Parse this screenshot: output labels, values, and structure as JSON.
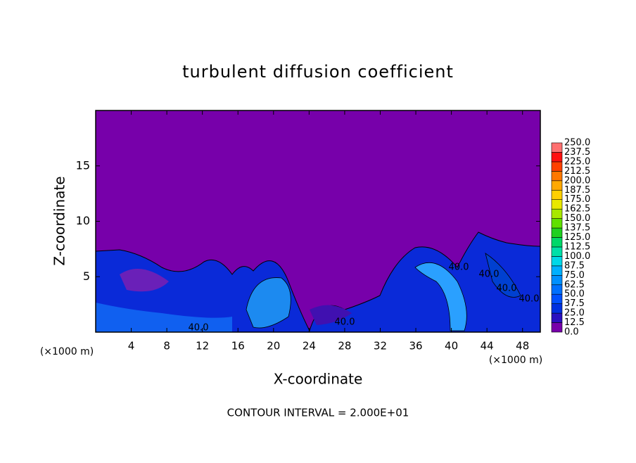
{
  "chart_data": {
    "type": "contour",
    "title": "turbulent diffusion coefficient",
    "xlabel": "X-coordinate",
    "ylabel": "Z-coordinate",
    "x_unit": "(×1000 m)",
    "footer": "CONTOUR INTERVAL = 2.000E+01",
    "xlim": [
      0,
      50
    ],
    "ylim": [
      0,
      20
    ],
    "xticks": [
      4,
      8,
      12,
      16,
      20,
      24,
      28,
      32,
      36,
      40,
      44,
      48
    ],
    "yticks": [
      5,
      10,
      15
    ],
    "background_color": "#7700aa",
    "contour_labels": [
      "40.0",
      "40.0",
      "40.0",
      "40.0",
      "40.0",
      "40.0"
    ],
    "colorbar": {
      "levels": [
        {
          "value": 0,
          "label": "0.0"
        },
        {
          "value": 12.5,
          "label": "12.5"
        },
        {
          "value": 25,
          "label": "25.0"
        },
        {
          "value": 37.5,
          "label": "37.5"
        },
        {
          "value": 50,
          "label": "50.0"
        },
        {
          "value": 62.5,
          "label": "62.5"
        },
        {
          "value": 75,
          "label": "75.0"
        },
        {
          "value": 87.5,
          "label": "87.5"
        },
        {
          "value": 100,
          "label": "100.0"
        },
        {
          "value": 112.5,
          "label": "112.5"
        },
        {
          "value": 125,
          "label": "125.0"
        },
        {
          "value": 137.5,
          "label": "137.5"
        },
        {
          "value": 150,
          "label": "150.0"
        },
        {
          "value": 162.5,
          "label": "162.5"
        },
        {
          "value": 175,
          "label": "175.0"
        },
        {
          "value": 187.5,
          "label": "187.5"
        },
        {
          "value": 200,
          "label": "200.0"
        },
        {
          "value": 212.5,
          "label": "212.5"
        },
        {
          "value": 225,
          "label": "225.0"
        },
        {
          "value": 237.5,
          "label": "237.5"
        },
        {
          "value": 250,
          "label": "250.0"
        }
      ],
      "colors": [
        "#7700aa",
        "#2a10c0",
        "#0030e0",
        "#0050ff",
        "#0070ff",
        "#0090ff",
        "#00b0ff",
        "#00d8e8",
        "#00e0a8",
        "#00d868",
        "#20d020",
        "#60e000",
        "#a8e800",
        "#e8e800",
        "#ffd000",
        "#ffa800",
        "#ff7800",
        "#ff4000",
        "#ff1010",
        "#ff7070"
      ]
    }
  }
}
